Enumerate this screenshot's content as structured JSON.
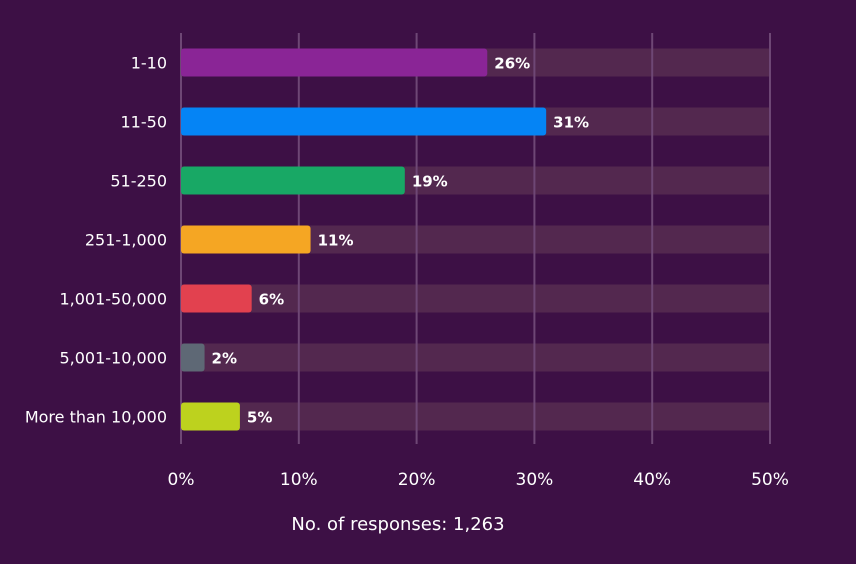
{
  "chart_data": {
    "type": "bar",
    "orientation": "horizontal",
    "categories": [
      "1-10",
      "11-50",
      "51-250",
      "251-1,000",
      "1,001-50,000",
      "5,001-10,000",
      "More than 10,000"
    ],
    "values": [
      26,
      31,
      19,
      11,
      6,
      2,
      5
    ],
    "value_labels": [
      "26%",
      "31%",
      "19%",
      "11%",
      "6%",
      "2%",
      "5%"
    ],
    "colors": [
      "#8a2596",
      "#0584f5",
      "#18a865",
      "#f5a623",
      "#e2414f",
      "#5e6875",
      "#bdd21e"
    ],
    "track_max": 50,
    "xlim": [
      0,
      50
    ],
    "xticks": [
      0,
      10,
      20,
      30,
      40,
      50
    ],
    "xtick_labels": [
      "0%",
      "10%",
      "20%",
      "30%",
      "40%",
      "50%"
    ],
    "grid": true,
    "footnote": "No. of responses: 1,263",
    "title": "",
    "xlabel": "",
    "ylabel": ""
  },
  "theme": {
    "background": "#3d1045",
    "track": "#53284f",
    "gridline": "#6e4775",
    "text": "#ffffff"
  }
}
